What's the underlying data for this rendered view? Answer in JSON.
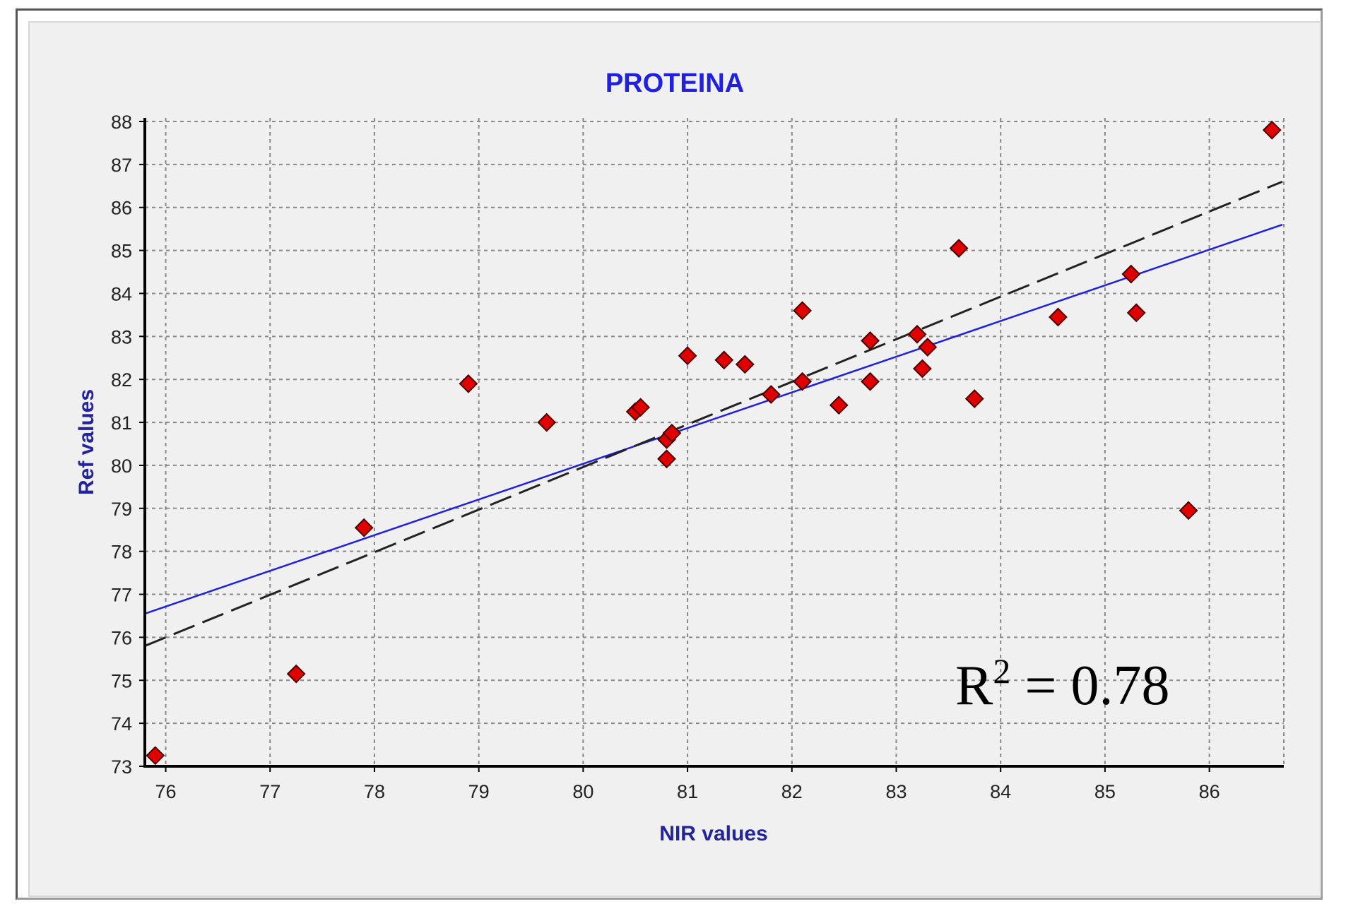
{
  "chart_data": {
    "type": "scatter",
    "title": "PROTEINA",
    "xlabel": "NIR values",
    "ylabel": "Ref values",
    "xlim": [
      75.8,
      86.7
    ],
    "ylim": [
      73,
      88
    ],
    "x_ticks": [
      "76",
      "77",
      "78",
      "79",
      "80",
      "81",
      "82",
      "83",
      "84",
      "85",
      "86"
    ],
    "y_ticks": [
      "73",
      "74",
      "75",
      "76",
      "77",
      "78",
      "79",
      "80",
      "81",
      "82",
      "83",
      "84",
      "85",
      "86",
      "87",
      "88"
    ],
    "grid": true,
    "points": [
      {
        "x": 75.9,
        "y": 73.25
      },
      {
        "x": 77.25,
        "y": 75.15
      },
      {
        "x": 77.9,
        "y": 78.55
      },
      {
        "x": 78.9,
        "y": 81.9
      },
      {
        "x": 79.65,
        "y": 81.0
      },
      {
        "x": 80.5,
        "y": 81.25
      },
      {
        "x": 80.55,
        "y": 81.35
      },
      {
        "x": 80.8,
        "y": 80.15
      },
      {
        "x": 80.8,
        "y": 80.6
      },
      {
        "x": 80.85,
        "y": 80.75
      },
      {
        "x": 81.0,
        "y": 82.55
      },
      {
        "x": 81.35,
        "y": 82.45
      },
      {
        "x": 81.55,
        "y": 82.35
      },
      {
        "x": 81.8,
        "y": 81.65
      },
      {
        "x": 82.1,
        "y": 81.95
      },
      {
        "x": 82.1,
        "y": 83.6
      },
      {
        "x": 82.45,
        "y": 81.4
      },
      {
        "x": 82.75,
        "y": 81.95
      },
      {
        "x": 82.75,
        "y": 82.9
      },
      {
        "x": 83.2,
        "y": 83.05
      },
      {
        "x": 83.25,
        "y": 82.25
      },
      {
        "x": 83.3,
        "y": 82.75
      },
      {
        "x": 83.6,
        "y": 85.05
      },
      {
        "x": 83.75,
        "y": 81.55
      },
      {
        "x": 84.55,
        "y": 83.45
      },
      {
        "x": 85.25,
        "y": 84.45
      },
      {
        "x": 85.3,
        "y": 83.55
      },
      {
        "x": 85.8,
        "y": 78.95
      },
      {
        "x": 86.6,
        "y": 87.8
      }
    ],
    "lines": [
      {
        "style": "solid",
        "color": "#2020e0",
        "from": [
          75.8,
          76.55
        ],
        "to": [
          86.7,
          85.6
        ]
      },
      {
        "style": "dashed",
        "color": "#222222",
        "from": [
          75.8,
          75.8
        ],
        "to": [
          86.7,
          86.6
        ]
      }
    ],
    "annotation": {
      "base": "R",
      "sup": "2",
      "rest": " = 0.78"
    },
    "colors": {
      "marker_fill": "#e00000",
      "marker_stroke": "#4a0000",
      "panel": "#f0f0f0",
      "grid": "#888888",
      "axis": "#000000"
    }
  }
}
